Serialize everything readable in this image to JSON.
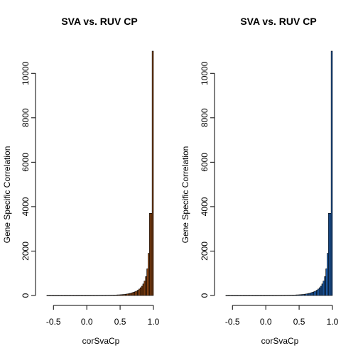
{
  "chart_data": [
    {
      "type": "bar",
      "title": "SVA vs. RUV CP",
      "xlabel": "corSvaCp",
      "ylabel": "Gene Specific Correlation",
      "bar_color": "#8B4513",
      "xlim": [
        -0.62,
        1.0
      ],
      "ylim": [
        0,
        11000
      ],
      "xticks": [
        "-0.5",
        "0.0",
        "0.5",
        "1.0"
      ],
      "yticks": [
        "0",
        "2000",
        "4000",
        "6000",
        "8000",
        "10000"
      ],
      "bins": {
        "x_start": [
          -0.6,
          -0.58,
          -0.56,
          -0.54,
          -0.52,
          -0.5,
          -0.48,
          -0.46,
          -0.44,
          -0.42,
          -0.4,
          -0.38,
          -0.36,
          -0.34,
          -0.32,
          -0.3,
          -0.28,
          -0.26,
          -0.24,
          -0.22,
          -0.2,
          -0.18,
          -0.16,
          -0.14,
          -0.12,
          -0.1,
          -0.08,
          -0.06,
          -0.04,
          -0.02,
          0.0,
          0.02,
          0.04,
          0.06,
          0.08,
          0.1,
          0.12,
          0.14,
          0.16,
          0.18,
          0.2,
          0.22,
          0.24,
          0.26,
          0.28,
          0.3,
          0.32,
          0.34,
          0.36,
          0.38,
          0.4,
          0.42,
          0.44,
          0.46,
          0.48,
          0.5,
          0.52,
          0.54,
          0.56,
          0.58,
          0.6,
          0.62,
          0.64,
          0.66,
          0.68,
          0.7,
          0.72,
          0.74,
          0.76,
          0.78,
          0.8,
          0.82,
          0.84,
          0.86,
          0.88,
          0.9,
          0.92,
          0.94,
          0.96,
          0.98
        ],
        "counts": [
          1,
          1,
          1,
          1,
          1,
          1,
          1,
          1,
          1,
          1,
          1,
          1,
          1,
          1,
          1,
          1,
          1,
          1,
          1,
          1,
          1,
          1,
          2,
          2,
          2,
          2,
          2,
          2,
          3,
          3,
          3,
          3,
          4,
          4,
          5,
          5,
          5,
          6,
          6,
          7,
          8,
          8,
          9,
          10,
          11,
          12,
          13,
          14,
          16,
          18,
          20,
          22,
          25,
          28,
          31,
          35,
          40,
          45,
          50,
          60,
          70,
          80,
          95,
          110,
          130,
          150,
          175,
          200,
          240,
          290,
          350,
          420,
          520,
          650,
          850,
          1200,
          1900,
          3700,
          3700,
          11000
        ]
      },
      "bin_width": 0.02
    },
    {
      "type": "bar",
      "title": "SVA vs. RUV CP",
      "xlabel": "corSvaCp",
      "ylabel": "Gene Specific Correlation",
      "bar_color": "#1F5FAE",
      "xlim": [
        -0.62,
        1.0
      ],
      "ylim": [
        0,
        11000
      ],
      "xticks": [
        "-0.5",
        "0.0",
        "0.5",
        "1.0"
      ],
      "yticks": [
        "0",
        "2000",
        "4000",
        "6000",
        "8000",
        "10000"
      ],
      "bins": {
        "x_start": [
          -0.6,
          -0.58,
          -0.56,
          -0.54,
          -0.52,
          -0.5,
          -0.48,
          -0.46,
          -0.44,
          -0.42,
          -0.4,
          -0.38,
          -0.36,
          -0.34,
          -0.32,
          -0.3,
          -0.28,
          -0.26,
          -0.24,
          -0.22,
          -0.2,
          -0.18,
          -0.16,
          -0.14,
          -0.12,
          -0.1,
          -0.08,
          -0.06,
          -0.04,
          -0.02,
          0.0,
          0.02,
          0.04,
          0.06,
          0.08,
          0.1,
          0.12,
          0.14,
          0.16,
          0.18,
          0.2,
          0.22,
          0.24,
          0.26,
          0.28,
          0.3,
          0.32,
          0.34,
          0.36,
          0.38,
          0.4,
          0.42,
          0.44,
          0.46,
          0.48,
          0.5,
          0.52,
          0.54,
          0.56,
          0.58,
          0.6,
          0.62,
          0.64,
          0.66,
          0.68,
          0.7,
          0.72,
          0.74,
          0.76,
          0.78,
          0.8,
          0.82,
          0.84,
          0.86,
          0.88,
          0.9,
          0.92,
          0.94,
          0.96,
          0.98
        ],
        "counts": [
          1,
          1,
          1,
          1,
          1,
          1,
          1,
          1,
          1,
          1,
          1,
          1,
          1,
          1,
          1,
          1,
          1,
          1,
          1,
          1,
          1,
          1,
          2,
          2,
          2,
          2,
          2,
          2,
          3,
          3,
          3,
          3,
          4,
          4,
          5,
          5,
          5,
          6,
          6,
          7,
          8,
          8,
          9,
          10,
          11,
          12,
          13,
          14,
          16,
          18,
          20,
          22,
          25,
          28,
          31,
          35,
          40,
          45,
          50,
          60,
          70,
          80,
          95,
          110,
          130,
          150,
          175,
          200,
          240,
          290,
          350,
          420,
          520,
          650,
          850,
          1200,
          1900,
          3700,
          3700,
          11000
        ]
      },
      "bin_width": 0.02
    }
  ]
}
